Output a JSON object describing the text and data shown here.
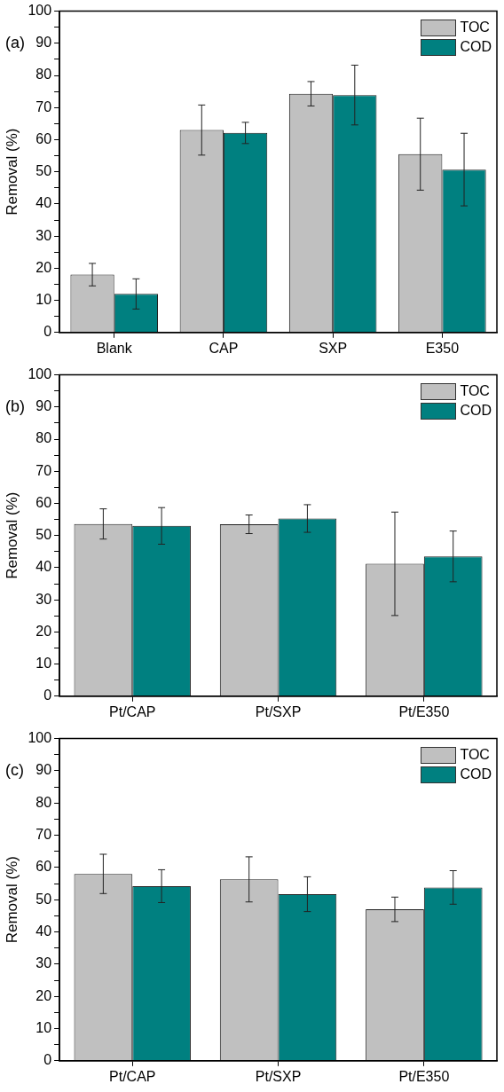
{
  "chart_data": [
    {
      "type": "bar",
      "ylabel": "Removal (%)",
      "annotations": [
        "(a)"
      ],
      "categories": [
        "Blank",
        "CAP",
        "SXP",
        "E350"
      ],
      "series": [
        {
          "name": "TOC",
          "color": "#c0c0c0",
          "values": [
            18,
            63,
            74.3,
            55.5
          ],
          "errors": [
            3.5,
            7.8,
            3.8,
            11.2
          ]
        },
        {
          "name": "COD",
          "color": "#008080",
          "values": [
            12,
            62.1,
            73.9,
            50.7
          ],
          "errors": [
            4.7,
            3.3,
            9.3,
            11.3
          ]
        }
      ],
      "ylim": [
        0,
        100
      ],
      "yticks": [
        0,
        {
          "value": 5,
          "label": null
        },
        10,
        {
          "value": 15,
          "label": null
        },
        20,
        {
          "value": 25,
          "label": null
        },
        30,
        {
          "value": 35,
          "label": null
        },
        40,
        {
          "value": 45,
          "label": null
        },
        50,
        {
          "value": 55,
          "label": null
        },
        60,
        {
          "value": 65,
          "label": null
        },
        70,
        {
          "value": 75,
          "label": null
        },
        80,
        {
          "value": 85,
          "label": null
        },
        90,
        {
          "value": 95,
          "label": null
        },
        100
      ],
      "grid": false,
      "legend": "top right"
    },
    {
      "type": "bar",
      "ylabel": "Removal (%)",
      "annotations": [
        "(b)"
      ],
      "categories": [
        "Pt/CAP",
        "Pt/SXP",
        "Pt/E350"
      ],
      "series": [
        {
          "name": "TOC",
          "color": "#c0c0c0",
          "values": [
            53.6,
            53.5,
            41.2
          ],
          "errors": [
            4.7,
            2.9,
            16.1
          ]
        },
        {
          "name": "COD",
          "color": "#008080",
          "values": [
            53,
            55.3,
            43.5
          ],
          "errors": [
            5.7,
            4.3,
            7.9
          ]
        }
      ],
      "ylim": [
        0,
        100
      ],
      "yticks": [
        0,
        {
          "value": 5,
          "label": null
        },
        10,
        {
          "value": 15,
          "label": null
        },
        20,
        {
          "value": 25,
          "label": null
        },
        30,
        {
          "value": 35,
          "label": null
        },
        40,
        {
          "value": 45,
          "label": null
        },
        50,
        {
          "value": 55,
          "label": null
        },
        60,
        {
          "value": 65,
          "label": null
        },
        70,
        {
          "value": 75,
          "label": null
        },
        80,
        {
          "value": 85,
          "label": null
        },
        90,
        {
          "value": 95,
          "label": null
        },
        100
      ],
      "grid": false,
      "legend": "top right"
    },
    {
      "type": "bar",
      "ylabel": "Removal (%)",
      "annotations": [
        "(c)"
      ],
      "categories": [
        "Pt/CAP",
        "Pt/SXP",
        "Pt/E350"
      ],
      "series": [
        {
          "name": "TOC",
          "color": "#c0c0c0",
          "values": [
            58,
            56.3,
            47
          ],
          "errors": [
            6.1,
            7,
            3.8
          ]
        },
        {
          "name": "COD",
          "color": "#008080",
          "values": [
            54.2,
            51.7,
            53.8
          ],
          "errors": [
            5.1,
            5.4,
            5.2
          ]
        }
      ],
      "ylim": [
        0,
        100
      ],
      "yticks": [
        0,
        {
          "value": 5,
          "label": null
        },
        10,
        {
          "value": 15,
          "label": null
        },
        20,
        {
          "value": 25,
          "label": null
        },
        30,
        {
          "value": 35,
          "label": null
        },
        40,
        {
          "value": 45,
          "label": null
        },
        50,
        {
          "value": 55,
          "label": null
        },
        60,
        {
          "value": 65,
          "label": null
        },
        70,
        {
          "value": 75,
          "label": null
        },
        80,
        {
          "value": 85,
          "label": null
        },
        90,
        {
          "value": 95,
          "label": null
        },
        100
      ],
      "grid": false,
      "legend": "top right"
    }
  ]
}
